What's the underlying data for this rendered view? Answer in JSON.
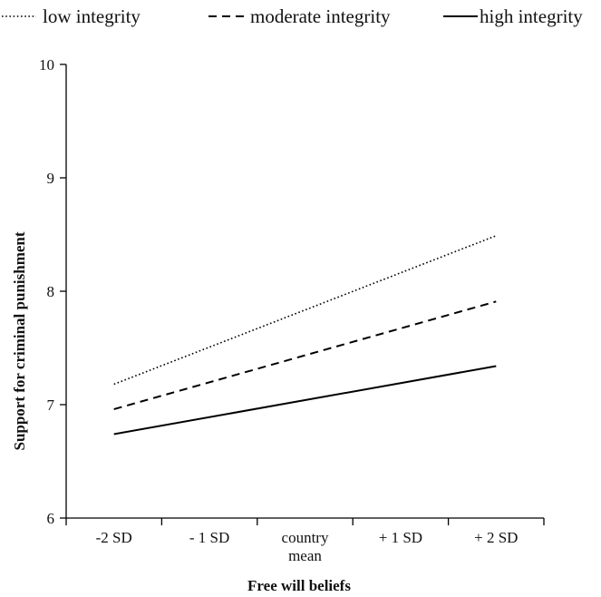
{
  "chart_data": {
    "type": "line",
    "xlabel": "Free will beliefs",
    "ylabel": "Support for criminal punishment",
    "categories": [
      [
        "-2 SD"
      ],
      [
        "- 1 SD"
      ],
      [
        "country",
        "mean"
      ],
      [
        "+ 1 SD"
      ],
      [
        "+ 2 SD"
      ]
    ],
    "ylim": [
      6,
      10
    ],
    "yticks": [
      "6",
      "7",
      "8",
      "9",
      "10"
    ],
    "grid": false,
    "legend_position": "top",
    "series": [
      {
        "name": "low integrity",
        "style": "dotted",
        "x": [
          0,
          4
        ],
        "values": [
          7.18,
          8.49
        ]
      },
      {
        "name": "moderate integrity",
        "style": "dashed",
        "x": [
          0,
          4
        ],
        "values": [
          6.96,
          7.91
        ]
      },
      {
        "name": "high integrity",
        "style": "solid",
        "x": [
          0,
          4
        ],
        "values": [
          6.74,
          7.34
        ]
      }
    ]
  }
}
